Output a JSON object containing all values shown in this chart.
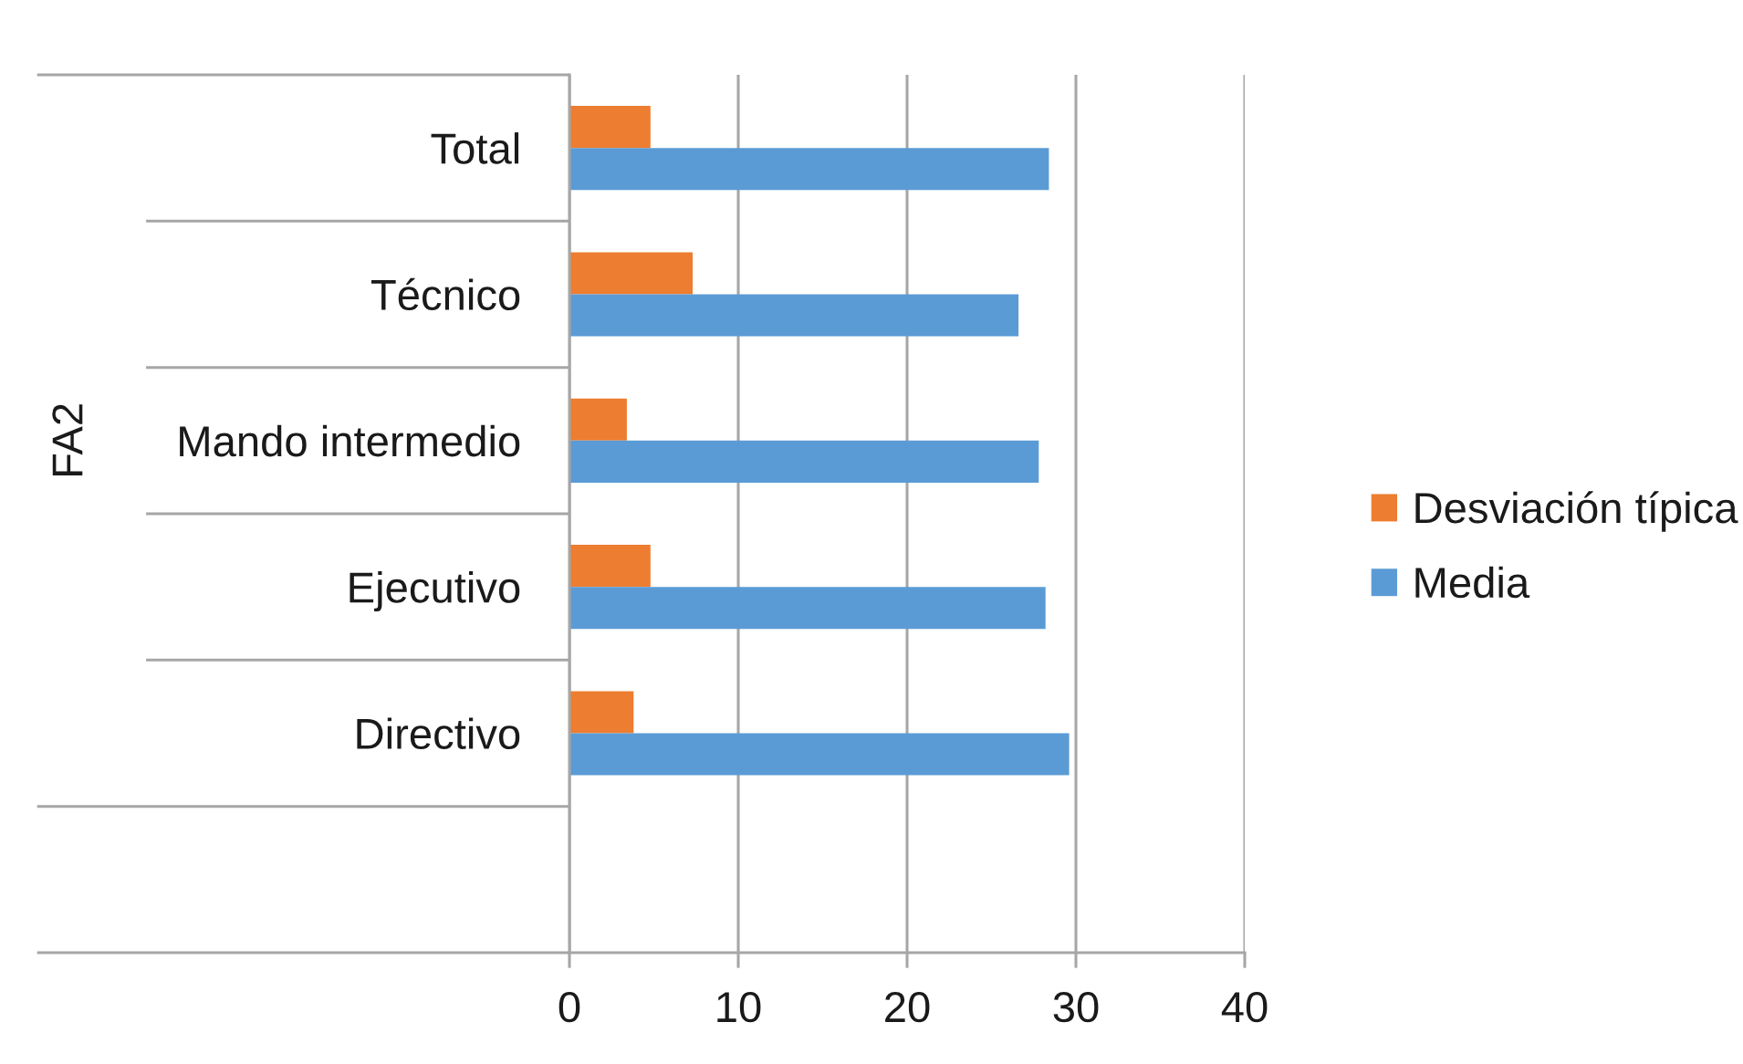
{
  "chart_data": {
    "type": "bar",
    "orientation": "horizontal",
    "ylabel": "FA2",
    "categories": [
      "Total",
      "Técnico",
      "Mando intermedio",
      "Ejecutivo",
      "Directivo",
      null
    ],
    "series": [
      {
        "name": "Desviación típica",
        "color": "#ed7d31",
        "values": [
          4.8,
          7.3,
          3.4,
          4.8,
          3.8,
          null
        ]
      },
      {
        "name": "Media",
        "color": "#5b9bd5",
        "values": [
          28.4,
          26.6,
          27.8,
          28.2,
          29.6,
          null
        ]
      }
    ],
    "xlim": [
      0,
      40
    ],
    "xticks": [
      0,
      10,
      20,
      30,
      40
    ],
    "grid": "x",
    "legend": "right"
  }
}
